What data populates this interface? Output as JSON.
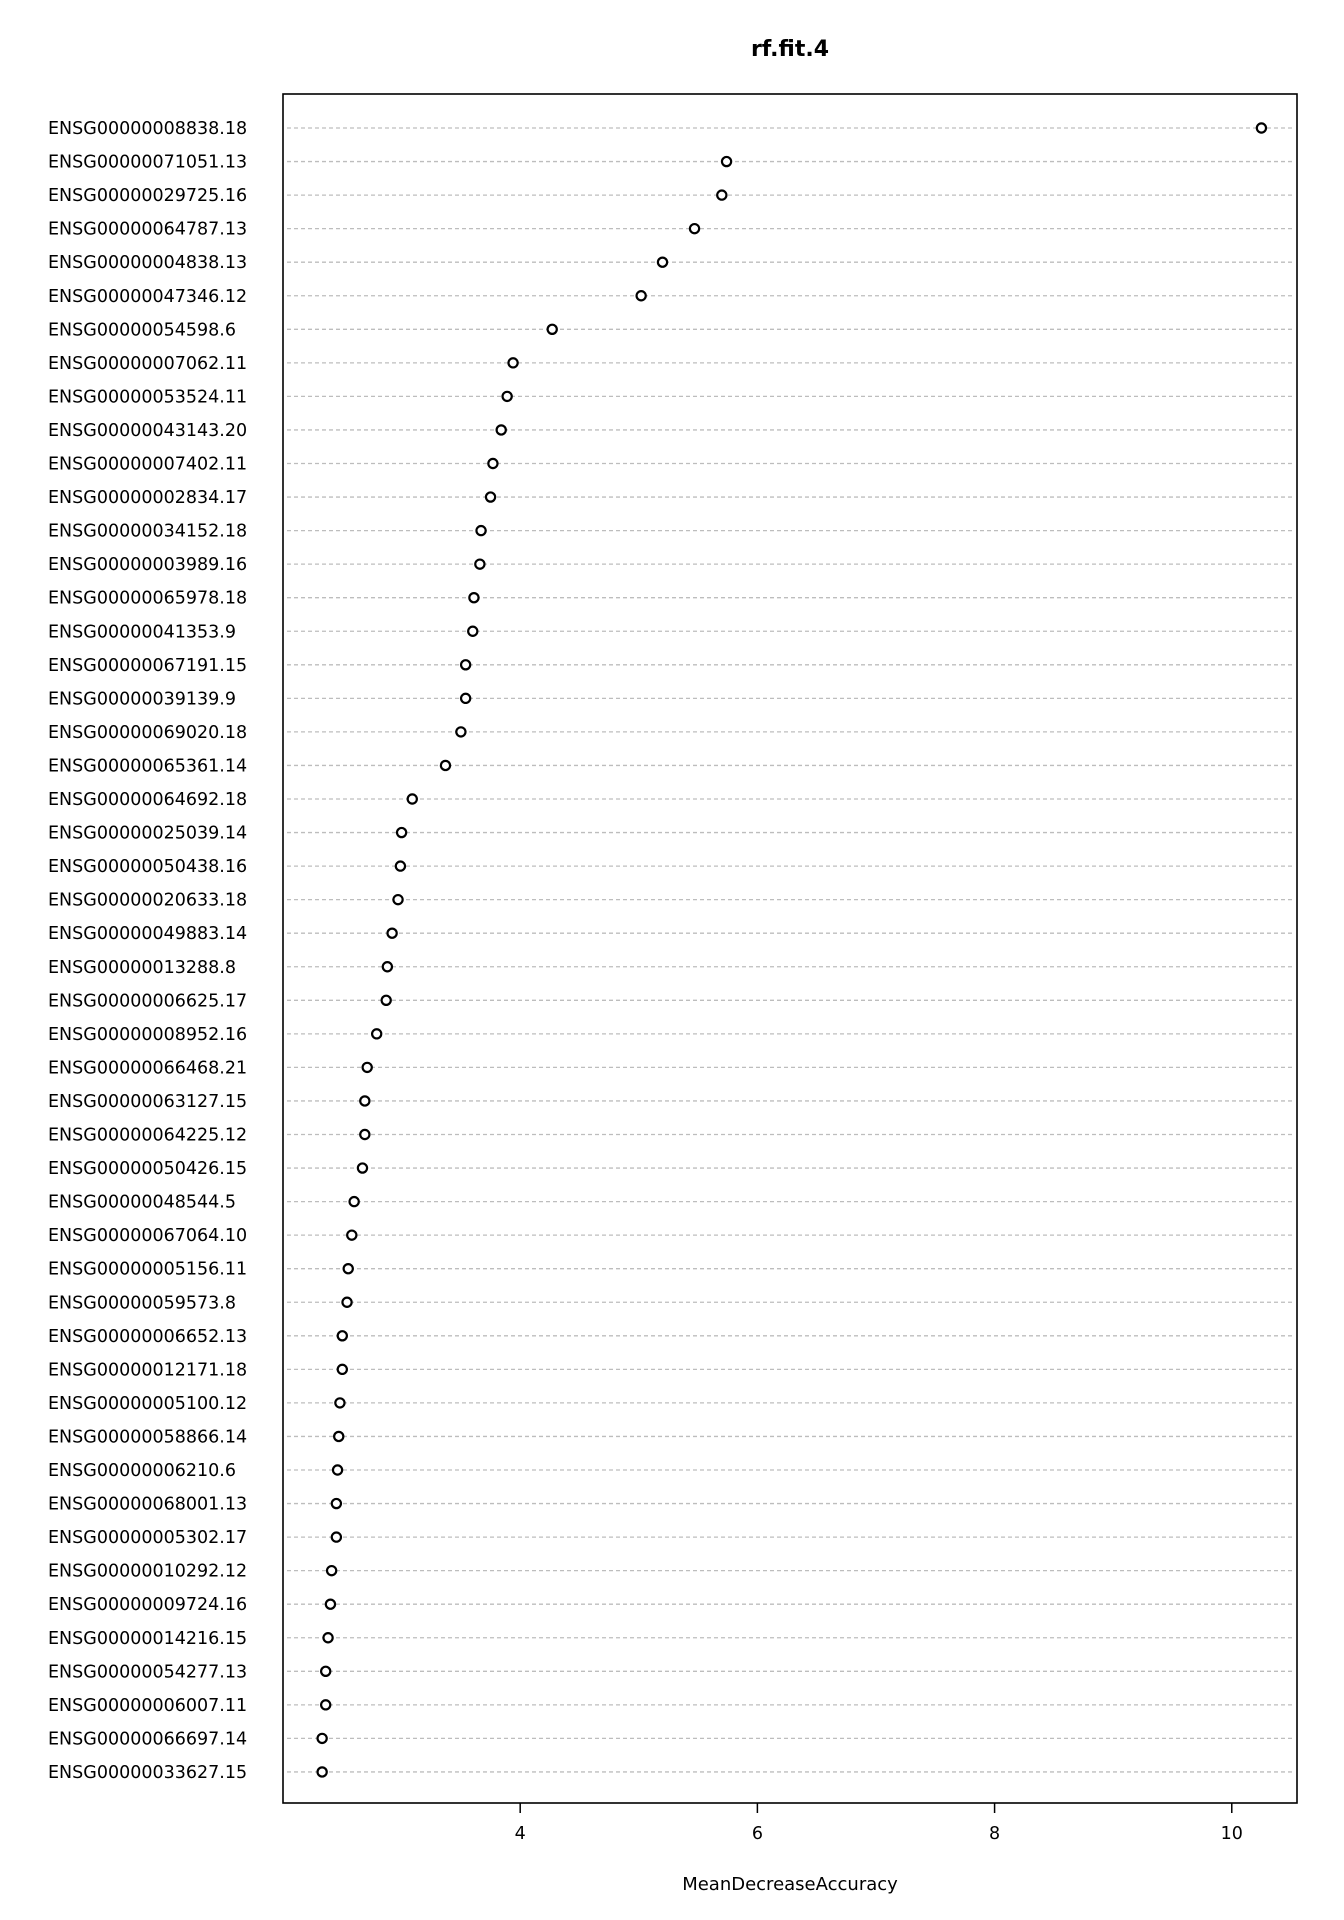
{
  "chart_data": {
    "type": "scatter",
    "title": "rf.fit.4",
    "xlabel": "MeanDecreaseAccuracy",
    "ylabel": "",
    "xlim": [
      2.0,
      10.55
    ],
    "xticks": [
      4,
      6,
      8,
      10
    ],
    "grid": true,
    "categories": [
      "ENSG00000008838.18",
      "ENSG00000071051.13",
      "ENSG00000029725.16",
      "ENSG00000064787.13",
      "ENSG00000004838.13",
      "ENSG00000047346.12",
      "ENSG00000054598.6",
      "ENSG00000007062.11",
      "ENSG00000053524.11",
      "ENSG00000043143.20",
      "ENSG00000007402.11",
      "ENSG00000002834.17",
      "ENSG00000034152.18",
      "ENSG00000003989.16",
      "ENSG00000065978.18",
      "ENSG00000041353.9",
      "ENSG00000067191.15",
      "ENSG00000039139.9",
      "ENSG00000069020.18",
      "ENSG00000065361.14",
      "ENSG00000064692.18",
      "ENSG00000025039.14",
      "ENSG00000050438.16",
      "ENSG00000020633.18",
      "ENSG00000049883.14",
      "ENSG00000013288.8",
      "ENSG00000006625.17",
      "ENSG00000008952.16",
      "ENSG00000066468.21",
      "ENSG00000063127.15",
      "ENSG00000064225.12",
      "ENSG00000050426.15",
      "ENSG00000048544.5",
      "ENSG00000067064.10",
      "ENSG00000005156.11",
      "ENSG00000059573.8",
      "ENSG00000006652.13",
      "ENSG00000012171.18",
      "ENSG00000005100.12",
      "ENSG00000058866.14",
      "ENSG00000006210.6",
      "ENSG00000068001.13",
      "ENSG00000005302.17",
      "ENSG00000010292.12",
      "ENSG00000009724.16",
      "ENSG00000014216.15",
      "ENSG00000054277.13",
      "ENSG00000006007.11",
      "ENSG00000066697.14",
      "ENSG00000033627.15"
    ],
    "values": [
      10.25,
      5.74,
      5.7,
      5.47,
      5.2,
      5.02,
      4.27,
      3.94,
      3.89,
      3.84,
      3.77,
      3.75,
      3.67,
      3.66,
      3.61,
      3.6,
      3.54,
      3.54,
      3.5,
      3.37,
      3.09,
      3.0,
      2.99,
      2.97,
      2.92,
      2.88,
      2.87,
      2.79,
      2.71,
      2.69,
      2.69,
      2.67,
      2.6,
      2.58,
      2.55,
      2.54,
      2.5,
      2.5,
      2.48,
      2.47,
      2.46,
      2.45,
      2.45,
      2.41,
      2.4,
      2.38,
      2.36,
      2.36,
      2.33,
      2.33
    ]
  }
}
